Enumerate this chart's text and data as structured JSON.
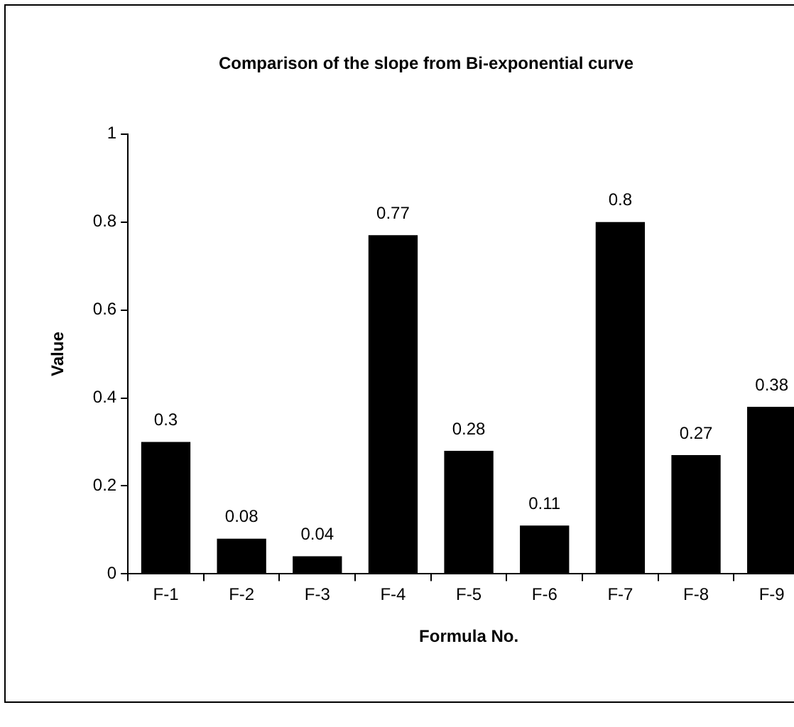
{
  "chart_data": {
    "type": "bar",
    "title": "Comparison of the slope from Bi-exponential curve",
    "xlabel": "Formula No.",
    "ylabel": "Value",
    "categories": [
      "F-1",
      "F-2",
      "F-3",
      "F-4",
      "F-5",
      "F-6",
      "F-7",
      "F-8",
      "F-9"
    ],
    "values": [
      0.3,
      0.08,
      0.04,
      0.77,
      0.28,
      0.11,
      0.8,
      0.27,
      0.38
    ],
    "color": "#000000",
    "ylim": [
      0,
      1
    ],
    "yticks": [
      0,
      0.2,
      0.4,
      0.6,
      0.8,
      1
    ],
    "grid": false,
    "legend": false,
    "data_labels": true
  }
}
